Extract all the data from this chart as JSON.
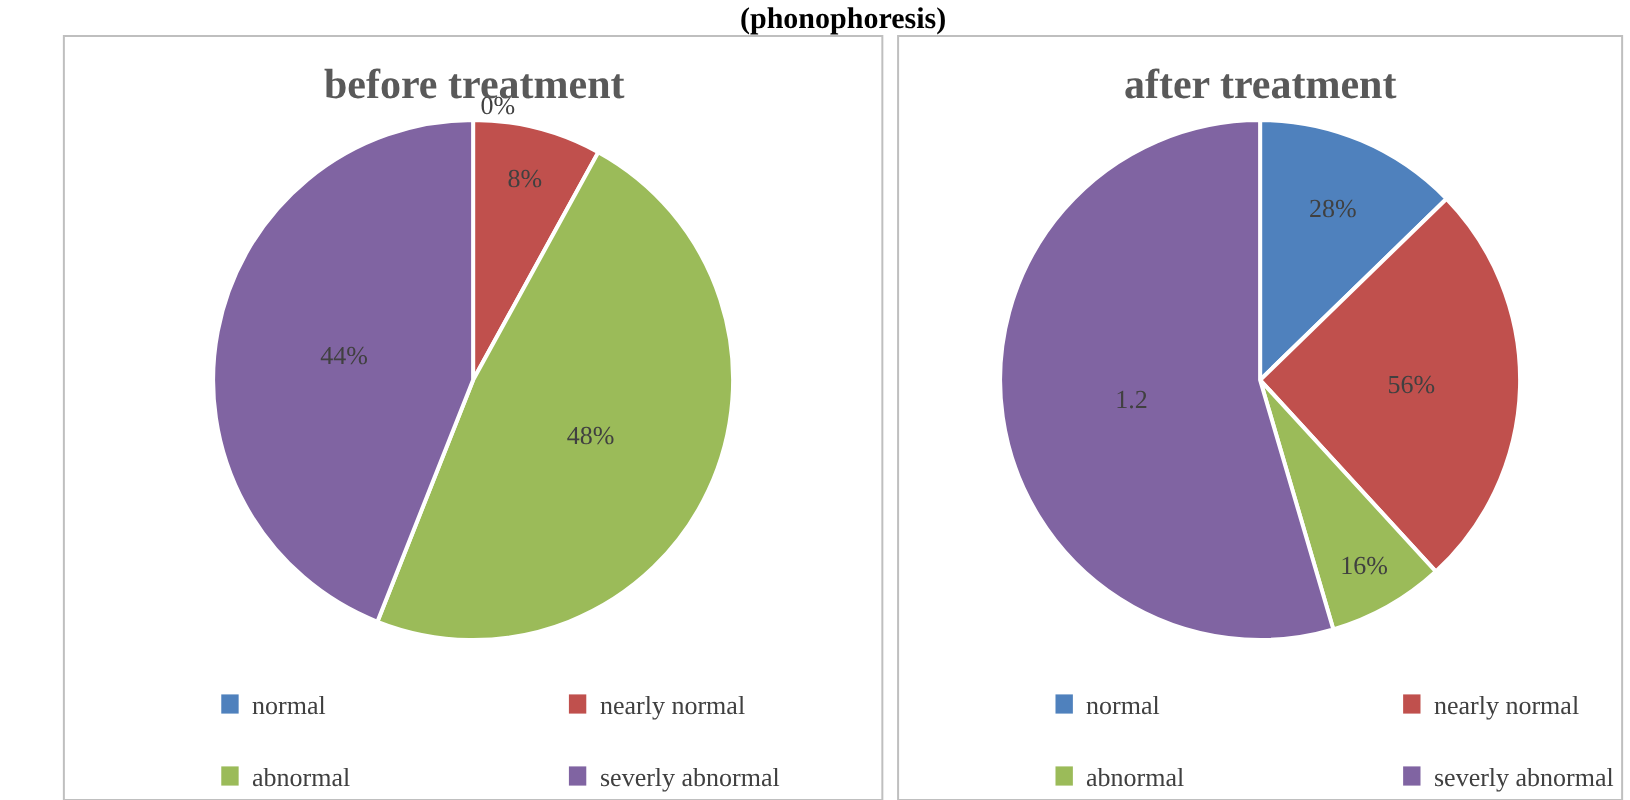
{
  "chart_data": [
    {
      "type": "pie",
      "title": "before treatment",
      "annotations": [
        "(phonophoresis)"
      ],
      "categories": [
        "normal",
        "nearly normal",
        "abnormal",
        "severly abnormal"
      ],
      "values": [
        0,
        8,
        48,
        44
      ],
      "value_labels": [
        "0%",
        "8%",
        "48%",
        "44%"
      ],
      "colors": [
        "#4f81bd",
        "#c0504d",
        "#9bbb59",
        "#8064a2"
      ],
      "legend": "bottom"
    },
    {
      "type": "pie",
      "title": "after treatment",
      "categories": [
        "normal",
        "nearly normal",
        "abnormal",
        "severly abnormal"
      ],
      "values": [
        0.28,
        0.56,
        0.16,
        1.2
      ],
      "value_labels": [
        "28%",
        "56%",
        "16%",
        "1.2"
      ],
      "colors": [
        "#4f81bd",
        "#c0504d",
        "#9bbb59",
        "#8064a2"
      ],
      "legend": "bottom"
    }
  ]
}
